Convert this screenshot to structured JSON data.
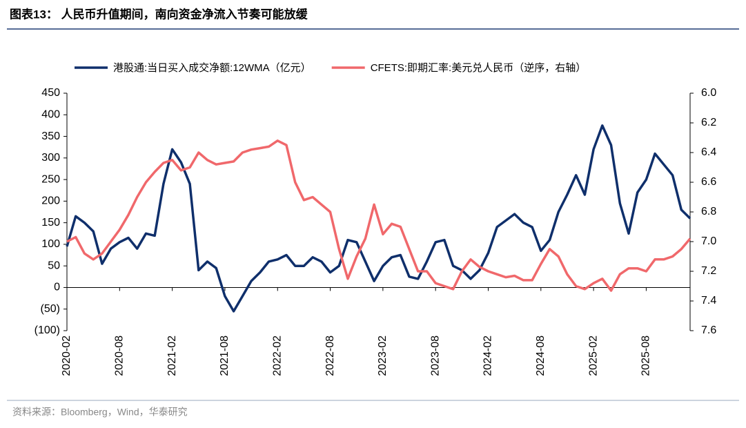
{
  "title": "图表13： 人民币升值期间，南向资金净流入节奏可能放缓",
  "source": "资料来源：Bloomberg，Wind，华泰研究",
  "chart_data": {
    "type": "line",
    "x": [
      "2020-02",
      "2020-03",
      "2020-04",
      "2020-05",
      "2020-06",
      "2020-07",
      "2020-08",
      "2020-09",
      "2020-10",
      "2020-11",
      "2020-12",
      "2021-01",
      "2021-02",
      "2021-03",
      "2021-04",
      "2021-05",
      "2021-06",
      "2021-07",
      "2021-08",
      "2021-09",
      "2021-10",
      "2021-11",
      "2021-12",
      "2022-01",
      "2022-02",
      "2022-03",
      "2022-04",
      "2022-05",
      "2022-06",
      "2022-07",
      "2022-08",
      "2022-09",
      "2022-10",
      "2022-11",
      "2022-12",
      "2023-01",
      "2023-02",
      "2023-03",
      "2023-04",
      "2023-05",
      "2023-06",
      "2023-07",
      "2023-08",
      "2023-09",
      "2023-10",
      "2023-11",
      "2023-12",
      "2024-01",
      "2024-02",
      "2024-03",
      "2024-04",
      "2024-05",
      "2024-06",
      "2024-07",
      "2024-08",
      "2024-09",
      "2024-10",
      "2024-11",
      "2024-12",
      "2025-01",
      "2025-02",
      "2025-03",
      "2025-04",
      "2025-05",
      "2025-06",
      "2025-07",
      "2025-08",
      "2025-09",
      "2025-10",
      "2025-11",
      "2025-12",
      "2026-01"
    ],
    "xticks": [
      "2020-02",
      "2020-08",
      "2021-02",
      "2021-08",
      "2022-02",
      "2022-08",
      "2023-02",
      "2023-08",
      "2024-02",
      "2024-08",
      "2025-02",
      "2025-08"
    ],
    "series": [
      {
        "name": "港股通:当日买入成交净额:12WMA（亿元）",
        "color": "#0f2f6b",
        "axis": "y",
        "values": [
          95,
          165,
          150,
          130,
          55,
          90,
          105,
          115,
          90,
          125,
          120,
          240,
          320,
          290,
          240,
          40,
          60,
          45,
          -20,
          -55,
          -20,
          15,
          35,
          60,
          65,
          75,
          50,
          50,
          70,
          60,
          35,
          50,
          110,
          105,
          60,
          15,
          50,
          70,
          75,
          25,
          20,
          60,
          105,
          110,
          50,
          40,
          20,
          40,
          80,
          140,
          155,
          170,
          150,
          140,
          85,
          110,
          175,
          215,
          260,
          215,
          320,
          375,
          330,
          195,
          125,
          220,
          250,
          310,
          285,
          260,
          180,
          160
        ]
      },
      {
        "name": "CFETS:即期汇率:美元兑人民币（逆序，右轴）",
        "color": "#f0686b",
        "axis": "y2",
        "values": [
          7.0,
          6.97,
          7.08,
          7.12,
          7.08,
          7.0,
          6.92,
          6.82,
          6.7,
          6.6,
          6.53,
          6.47,
          6.45,
          6.52,
          6.5,
          6.4,
          6.45,
          6.48,
          6.47,
          6.46,
          6.4,
          6.38,
          6.37,
          6.36,
          6.32,
          6.35,
          6.6,
          6.72,
          6.7,
          6.75,
          6.8,
          7.05,
          7.25,
          7.1,
          6.98,
          6.75,
          6.95,
          6.88,
          6.9,
          7.05,
          7.2,
          7.2,
          7.28,
          7.3,
          7.32,
          7.2,
          7.12,
          7.17,
          7.2,
          7.22,
          7.24,
          7.23,
          7.26,
          7.26,
          7.15,
          7.05,
          7.1,
          7.22,
          7.3,
          7.32,
          7.28,
          7.25,
          7.33,
          7.22,
          7.18,
          7.18,
          7.2,
          7.12,
          7.12,
          7.1,
          7.05,
          6.98
        ]
      }
    ],
    "ylim": [
      -100,
      450
    ],
    "yticks": [
      {
        "value": -100,
        "label": "(100)"
      },
      {
        "value": -50,
        "label": "(50)"
      },
      0,
      50,
      100,
      150,
      200,
      250,
      300,
      350,
      400,
      450
    ],
    "y2lim": [
      7.6,
      6.0
    ],
    "y2ticks": [
      {
        "value": 7.6,
        "label": "7.6"
      },
      {
        "value": 7.4,
        "label": "7.4"
      },
      {
        "value": 7.2,
        "label": "7.2"
      },
      {
        "value": 7.0,
        "label": "7.0"
      },
      {
        "value": 6.8,
        "label": "6.8"
      },
      {
        "value": 6.6,
        "label": "6.6"
      },
      {
        "value": 6.4,
        "label": "6.4"
      },
      {
        "value": 6.2,
        "label": "6.2"
      },
      {
        "value": 6.0,
        "label": "6.0"
      }
    ],
    "legend": "top"
  }
}
